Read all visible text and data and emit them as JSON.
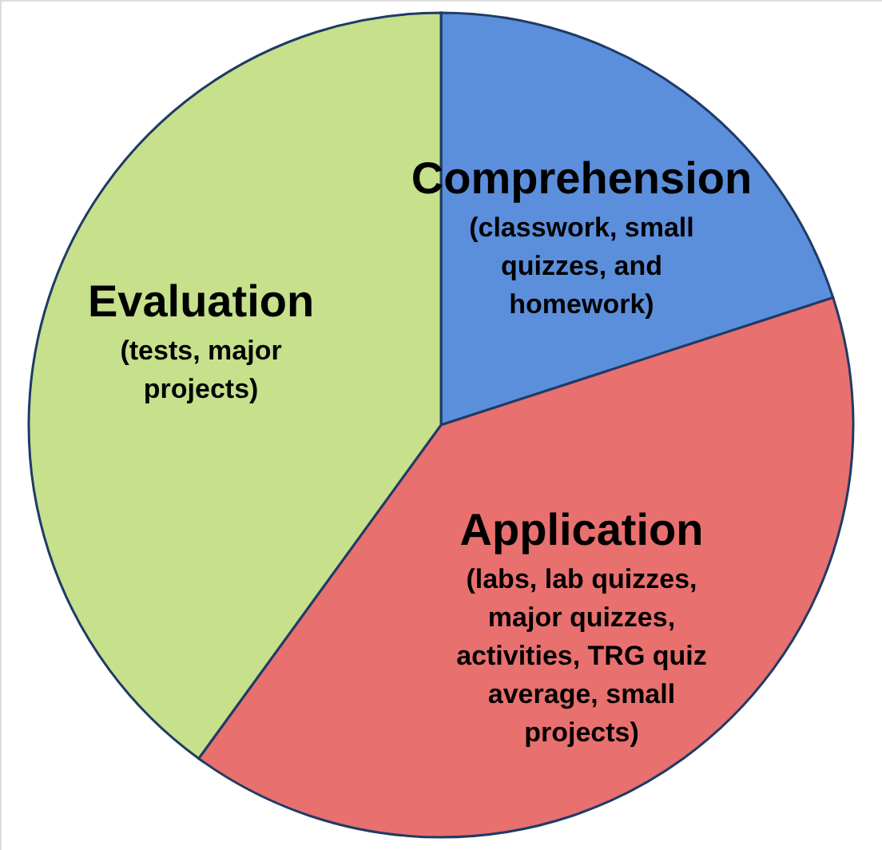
{
  "chart_data": {
    "type": "pie",
    "categories": [
      "Comprehension",
      "Application",
      "Evaluation"
    ],
    "values": [
      20,
      40,
      40
    ],
    "colors": [
      "#5b8fdc",
      "#e8706e",
      "#c6e08c"
    ],
    "annotations": [
      "(classwork, small quizzes, and homework)",
      "(labs, lab quizzes, major quizzes, activities, TRG quiz average, small projects)",
      "(tests, major projects)"
    ]
  }
}
